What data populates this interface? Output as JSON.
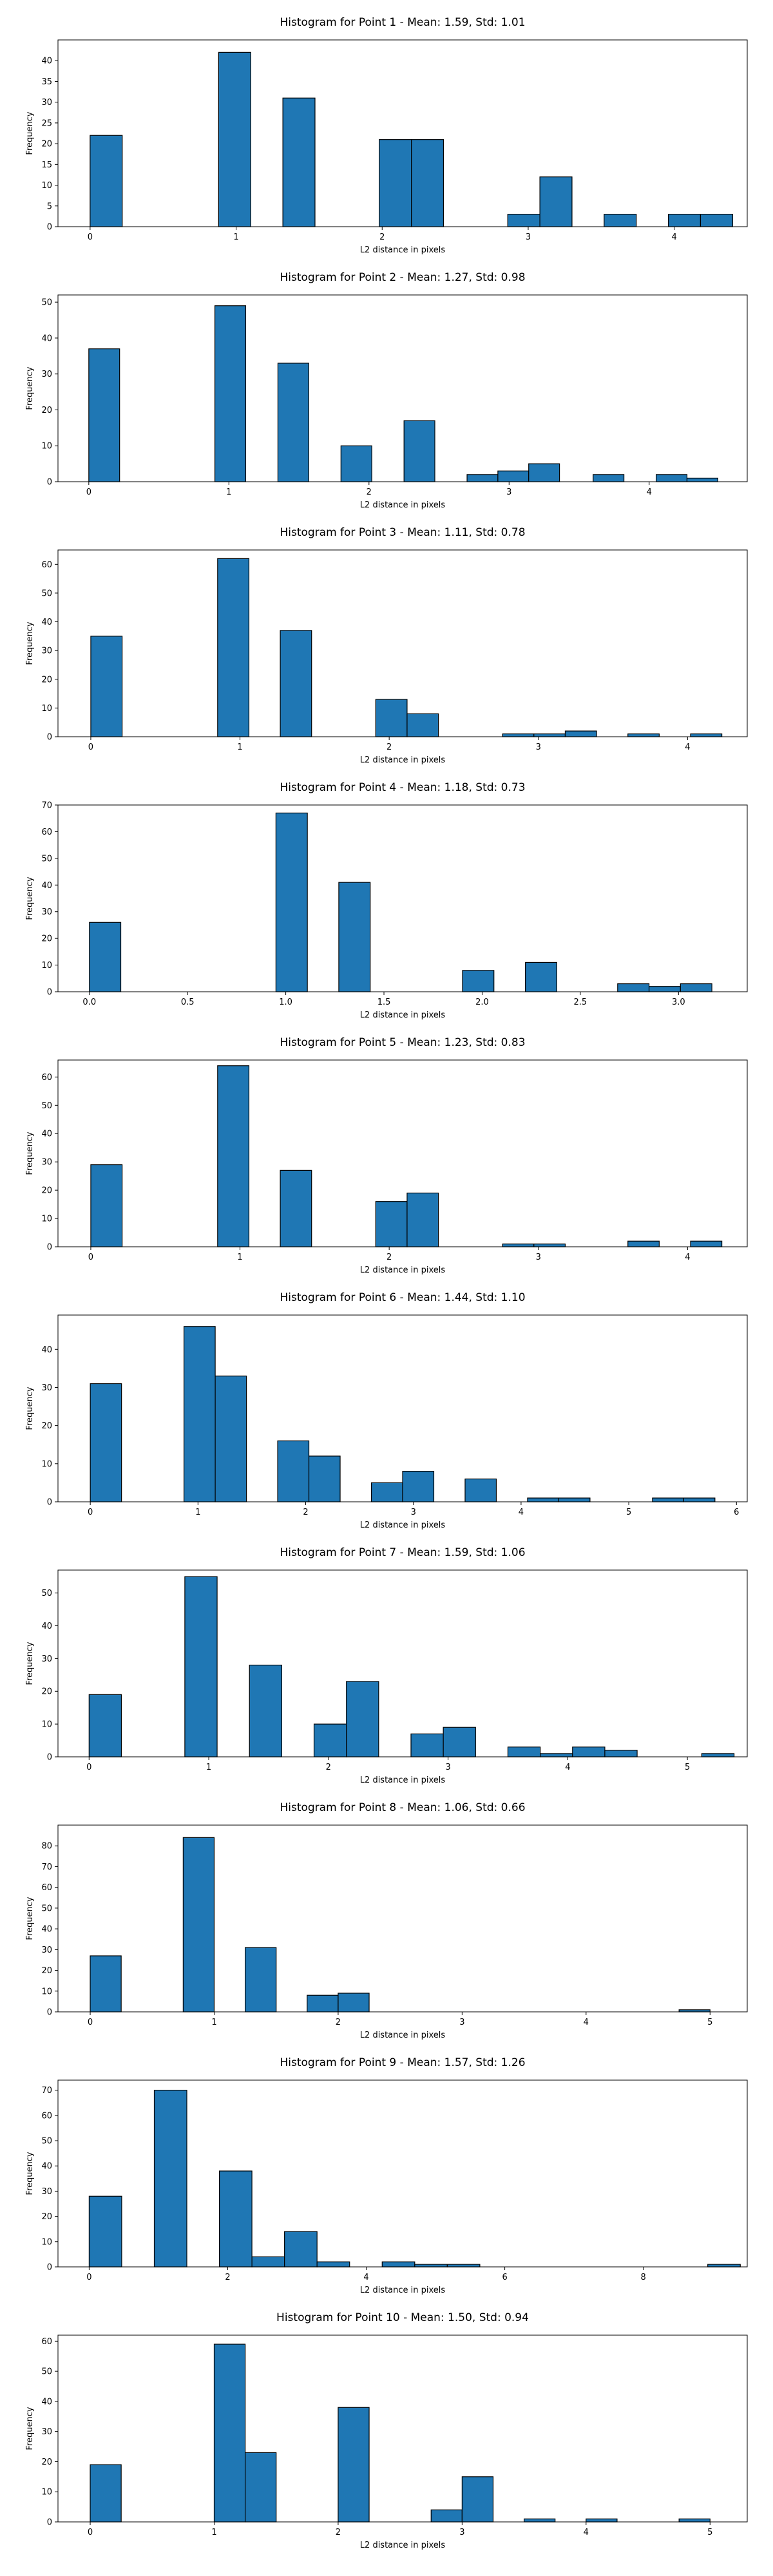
{
  "chart_data": [
    {
      "type": "bar",
      "title": "Histogram for Point 1 - Mean: 1.59, Std: 1.01",
      "xlabel": "L2 distance in pixels",
      "ylabel": "Frequency",
      "xlim": [
        -0.22,
        4.5
      ],
      "ylim": [
        0,
        45
      ],
      "xticks": [
        "0",
        "1",
        "2",
        "3",
        "4"
      ],
      "xtick_values": [
        0,
        1,
        2,
        3,
        4
      ],
      "yticks": [
        0,
        5,
        10,
        15,
        20,
        25,
        30,
        35,
        40
      ],
      "bins": [
        [
          0,
          0.22,
          22
        ],
        [
          0.88,
          1.1,
          42
        ],
        [
          1.32,
          1.54,
          31
        ],
        [
          1.98,
          2.2,
          21
        ],
        [
          2.2,
          2.42,
          21
        ],
        [
          2.86,
          3.08,
          3
        ],
        [
          3.08,
          3.3,
          12
        ],
        [
          3.52,
          3.74,
          3
        ],
        [
          3.96,
          4.18,
          3
        ],
        [
          4.18,
          4.4,
          3
        ]
      ]
    },
    {
      "type": "bar",
      "title": "Histogram for Point 2 - Mean: 1.27, Std: 0.98",
      "xlabel": "L2 distance in pixels",
      "ylabel": "Frequency",
      "xlim": [
        -0.22,
        4.7
      ],
      "ylim": [
        0,
        52
      ],
      "xticks": [
        "0",
        "1",
        "2",
        "3",
        "4"
      ],
      "xtick_values": [
        0,
        1,
        2,
        3,
        4
      ],
      "yticks": [
        0,
        10,
        20,
        30,
        40,
        50
      ],
      "bins": [
        [
          0,
          0.22,
          37
        ],
        [
          0.9,
          1.12,
          49
        ],
        [
          1.35,
          1.57,
          33
        ],
        [
          1.8,
          2.02,
          10
        ],
        [
          2.25,
          2.47,
          17
        ],
        [
          2.7,
          2.92,
          2
        ],
        [
          2.92,
          3.14,
          3
        ],
        [
          3.14,
          3.36,
          5
        ],
        [
          3.6,
          3.82,
          2
        ],
        [
          4.05,
          4.27,
          2
        ],
        [
          4.27,
          4.49,
          1
        ]
      ]
    },
    {
      "type": "bar",
      "title": "Histogram for Point 3 - Mean: 1.11, Std: 0.78",
      "xlabel": "L2 distance in pixels",
      "ylabel": "Frequency",
      "xlim": [
        -0.22,
        4.4
      ],
      "ylim": [
        0,
        65
      ],
      "xticks": [
        "0",
        "1",
        "2",
        "3",
        "4"
      ],
      "xtick_values": [
        0,
        1,
        2,
        3,
        4
      ],
      "yticks": [
        0,
        10,
        20,
        30,
        40,
        50,
        60
      ],
      "bins": [
        [
          0,
          0.21,
          35
        ],
        [
          0.85,
          1.06,
          62
        ],
        [
          1.27,
          1.48,
          37
        ],
        [
          1.91,
          2.12,
          13
        ],
        [
          2.12,
          2.33,
          8
        ],
        [
          2.76,
          2.97,
          1
        ],
        [
          2.97,
          3.18,
          1
        ],
        [
          3.18,
          3.39,
          2
        ],
        [
          3.6,
          3.81,
          1
        ],
        [
          4.02,
          4.23,
          1
        ]
      ]
    },
    {
      "type": "bar",
      "title": "Histogram for Point 4 - Mean: 1.18, Std: 0.73",
      "xlabel": "L2 distance in pixels",
      "ylabel": "Frequency",
      "xlim": [
        -0.16,
        3.35
      ],
      "ylim": [
        0,
        70
      ],
      "xticks": [
        "0.0",
        "0.5",
        "1.0",
        "1.5",
        "2.0",
        "2.5",
        "3.0"
      ],
      "xtick_values": [
        0,
        0.5,
        1,
        1.5,
        2,
        2.5,
        3
      ],
      "yticks": [
        0,
        10,
        20,
        30,
        40,
        50,
        60,
        70
      ],
      "bins": [
        [
          0,
          0.16,
          26
        ],
        [
          0.95,
          1.11,
          67
        ],
        [
          1.27,
          1.43,
          41
        ],
        [
          1.9,
          2.06,
          8
        ],
        [
          2.22,
          2.38,
          11
        ],
        [
          2.69,
          2.85,
          3
        ],
        [
          2.85,
          3.01,
          2
        ],
        [
          3.01,
          3.17,
          3
        ]
      ]
    },
    {
      "type": "bar",
      "title": "Histogram for Point 5 - Mean: 1.23, Std: 0.83",
      "xlabel": "L2 distance in pixels",
      "ylabel": "Frequency",
      "xlim": [
        -0.22,
        4.4
      ],
      "ylim": [
        0,
        66
      ],
      "xticks": [
        "0",
        "1",
        "2",
        "3",
        "4"
      ],
      "xtick_values": [
        0,
        1,
        2,
        3,
        4
      ],
      "yticks": [
        0,
        10,
        20,
        30,
        40,
        50,
        60
      ],
      "bins": [
        [
          0,
          0.21,
          29
        ],
        [
          0.85,
          1.06,
          64
        ],
        [
          1.27,
          1.48,
          27
        ],
        [
          1.91,
          2.12,
          16
        ],
        [
          2.12,
          2.33,
          19
        ],
        [
          2.76,
          2.97,
          1
        ],
        [
          2.97,
          3.18,
          1
        ],
        [
          3.6,
          3.81,
          2
        ],
        [
          4.02,
          4.23,
          2
        ]
      ]
    },
    {
      "type": "bar",
      "title": "Histogram for Point 6 - Mean: 1.44, Std: 1.10",
      "xlabel": "L2 distance in pixels",
      "ylabel": "Frequency",
      "xlim": [
        -0.3,
        6.1
      ],
      "ylim": [
        0,
        49
      ],
      "xticks": [
        "0",
        "1",
        "2",
        "3",
        "4",
        "5",
        "6"
      ],
      "xtick_values": [
        0,
        1,
        2,
        3,
        4,
        5,
        6
      ],
      "yticks": [
        0,
        10,
        20,
        30,
        40
      ],
      "bins": [
        [
          0,
          0.29,
          31
        ],
        [
          0.87,
          1.16,
          46
        ],
        [
          1.16,
          1.45,
          33
        ],
        [
          1.74,
          2.03,
          16
        ],
        [
          2.03,
          2.32,
          12
        ],
        [
          2.61,
          2.9,
          5
        ],
        [
          2.9,
          3.19,
          8
        ],
        [
          3.48,
          3.77,
          6
        ],
        [
          4.06,
          4.35,
          1
        ],
        [
          4.35,
          4.64,
          1
        ],
        [
          5.22,
          5.51,
          1
        ],
        [
          5.51,
          5.8,
          1
        ]
      ]
    },
    {
      "type": "bar",
      "title": "Histogram for Point 7 - Mean: 1.59, Std: 1.06",
      "xlabel": "L2 distance in pixels",
      "ylabel": "Frequency",
      "xlim": [
        -0.26,
        5.5
      ],
      "ylim": [
        0,
        57
      ],
      "xticks": [
        "0",
        "1",
        "2",
        "3",
        "4",
        "5"
      ],
      "xtick_values": [
        0,
        1,
        2,
        3,
        4,
        5
      ],
      "yticks": [
        0,
        10,
        20,
        30,
        40,
        50
      ],
      "bins": [
        [
          0,
          0.27,
          19
        ],
        [
          0.8,
          1.07,
          55
        ],
        [
          1.34,
          1.61,
          28
        ],
        [
          1.88,
          2.15,
          10
        ],
        [
          2.15,
          2.42,
          23
        ],
        [
          2.69,
          2.96,
          7
        ],
        [
          2.96,
          3.23,
          9
        ],
        [
          3.5,
          3.77,
          3
        ],
        [
          3.77,
          4.04,
          1
        ],
        [
          4.04,
          4.31,
          3
        ],
        [
          4.31,
          4.58,
          2
        ],
        [
          5.12,
          5.39,
          1
        ]
      ]
    },
    {
      "type": "bar",
      "title": "Histogram for Point 8 - Mean: 1.06, Std: 0.66",
      "xlabel": "L2 distance in pixels",
      "ylabel": "Frequency",
      "xlim": [
        -0.26,
        5.3
      ],
      "ylim": [
        0,
        90
      ],
      "xticks": [
        "0",
        "1",
        "2",
        "3",
        "4",
        "5"
      ],
      "xtick_values": [
        0,
        1,
        2,
        3,
        4,
        5
      ],
      "yticks": [
        0,
        10,
        20,
        30,
        40,
        50,
        60,
        70,
        80
      ],
      "bins": [
        [
          0,
          0.25,
          27
        ],
        [
          0.75,
          1.0,
          84
        ],
        [
          1.25,
          1.5,
          31
        ],
        [
          1.75,
          2.0,
          8
        ],
        [
          2.0,
          2.25,
          9
        ],
        [
          4.75,
          5.0,
          1
        ]
      ]
    },
    {
      "type": "bar",
      "title": "Histogram for Point 9 - Mean: 1.57, Std: 1.26",
      "xlabel": "L2 distance in pixels",
      "ylabel": "Frequency",
      "xlim": [
        -0.45,
        9.5
      ],
      "ylim": [
        0,
        74
      ],
      "xticks": [
        "0",
        "2",
        "4",
        "6",
        "8"
      ],
      "xtick_values": [
        0,
        2,
        4,
        6,
        8
      ],
      "yticks": [
        0,
        10,
        20,
        30,
        40,
        50,
        60,
        70
      ],
      "bins": [
        [
          0,
          0.47,
          28
        ],
        [
          0.94,
          1.41,
          70
        ],
        [
          1.88,
          2.35,
          38
        ],
        [
          2.35,
          2.82,
          4
        ],
        [
          2.82,
          3.29,
          14
        ],
        [
          3.29,
          3.76,
          2
        ],
        [
          4.23,
          4.7,
          2
        ],
        [
          4.7,
          5.17,
          1
        ],
        [
          5.17,
          5.64,
          1
        ],
        [
          8.93,
          9.4,
          1
        ]
      ]
    },
    {
      "type": "bar",
      "title": "Histogram for Point 10 - Mean: 1.50, Std: 0.94",
      "xlabel": "L2 distance in pixels",
      "ylabel": "Frequency",
      "xlim": [
        -0.26,
        5.3
      ],
      "ylim": [
        0,
        62
      ],
      "xticks": [
        "0",
        "1",
        "2",
        "3",
        "4",
        "5"
      ],
      "xtick_values": [
        0,
        1,
        2,
        3,
        4,
        5
      ],
      "yticks": [
        0,
        10,
        20,
        30,
        40,
        50,
        60
      ],
      "bins": [
        [
          0,
          0.25,
          19
        ],
        [
          1.0,
          1.25,
          59
        ],
        [
          1.25,
          1.5,
          23
        ],
        [
          2.0,
          2.25,
          38
        ],
        [
          2.75,
          3.0,
          4
        ],
        [
          3.0,
          3.25,
          15
        ],
        [
          3.5,
          3.75,
          1
        ],
        [
          4.0,
          4.25,
          1
        ],
        [
          4.75,
          5.0,
          1
        ]
      ]
    }
  ]
}
